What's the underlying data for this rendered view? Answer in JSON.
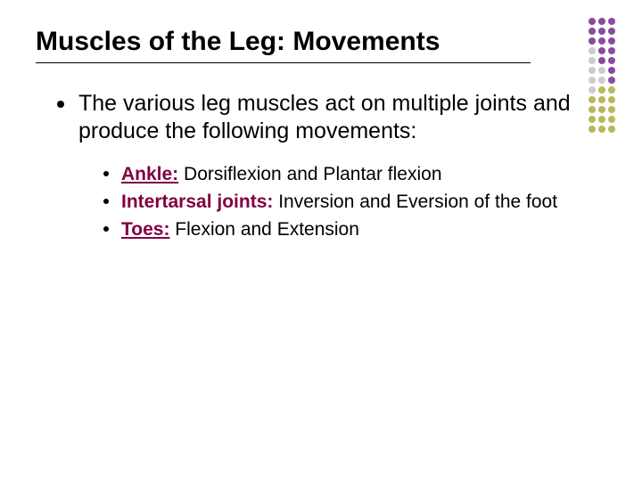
{
  "title": "Muscles of the Leg: Movements",
  "intro": "The various leg muscles act on multiple joints and produce the following movements:",
  "items": [
    {
      "label": "Ankle:",
      "desc": " Dorsiflexion and Plantar flexion"
    },
    {
      "label": "Intertarsal joints:",
      "desc": " Inversion and Eversion of the foot"
    },
    {
      "label": "Toes:",
      "desc": " Flexion and Extension"
    }
  ],
  "colors": {
    "label": "#800040",
    "text": "#000000",
    "bg": "#ffffff",
    "deco_purple": "#8a4a9e",
    "deco_olive": "#b8b85a",
    "deco_grey": "#cccccc"
  },
  "fonts": {
    "title_size": 30,
    "main_size": 25,
    "sub_size": 21
  }
}
